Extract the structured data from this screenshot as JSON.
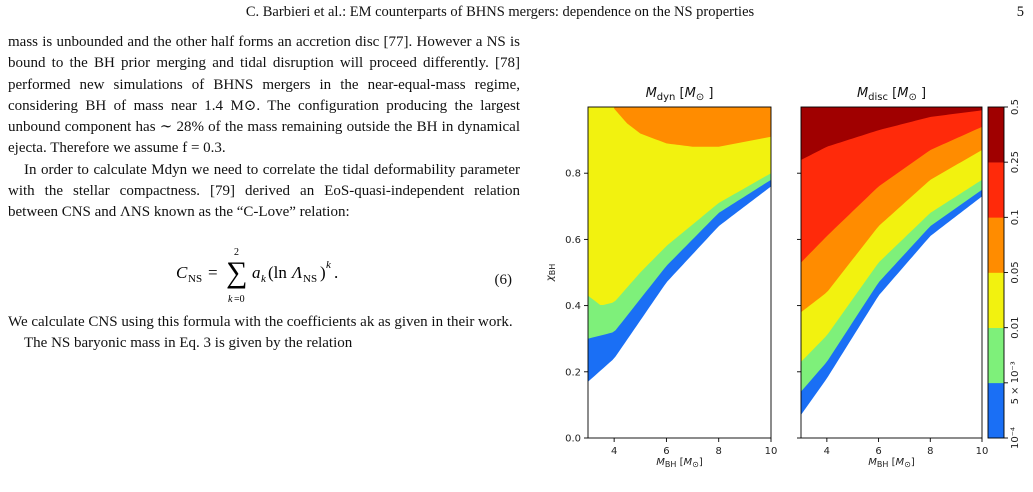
{
  "header": {
    "title": "C. Barbieri et al.: EM counterparts of BHNS mergers: dependence on the NS properties",
    "page_number": "5"
  },
  "text": {
    "p1": "mass is unbounded and the other half forms an accretion disc [77]. However a NS is bound to the BH prior merging and tidal disruption will proceed differently. [78] performed new simulations of BHNS mergers in the near-equal-mass regime, considering BH of mass near 1.4 M⊙. The configuration producing the largest unbound component has ∼ 28% of the mass remaining outside the BH in dynamical ejecta. Therefore we assume f = 0.3.",
    "p2": "In order to calculate Mdyn we need to correlate the tidal deformability parameter with the stellar compactness. [79] derived an EoS-quasi-independent relation between CNS and ΛNS known as the “C-Love” relation:",
    "equation_number": "(6)",
    "p3": "We calculate CNS using this formula with the coefficients ak as given in their work.",
    "p4": "The NS baryonic mass in Eq. 3 is given by the relation"
  },
  "chart_data": [
    {
      "type": "contour",
      "title": "M_dyn [M_⊙]",
      "xlabel": "M_BH [M_⊙]",
      "ylabel": "χ_BH",
      "xlim": [
        3,
        10
      ],
      "ylim": [
        0,
        1
      ],
      "xticks": [
        4,
        6,
        8,
        10
      ],
      "yticks": [
        0.0,
        0.2,
        0.4,
        0.6,
        0.8
      ],
      "region_boundaries": [
        {
          "level": "1e-4 → 5e-3",
          "x": [
            3,
            4,
            6,
            8,
            10
          ],
          "y": [
            0.17,
            0.24,
            0.47,
            0.64,
            0.76
          ]
        },
        {
          "level": "5e-3 → 0.01",
          "x": [
            3,
            4,
            6,
            8,
            10
          ],
          "y": [
            0.3,
            0.32,
            0.52,
            0.68,
            0.78
          ]
        },
        {
          "level": "0.01 → 0.05",
          "x": [
            3,
            3.5,
            4,
            5,
            6,
            8,
            10
          ],
          "y": [
            0.43,
            0.4,
            0.41,
            0.5,
            0.58,
            0.71,
            0.8
          ]
        },
        {
          "level": "0.05 → 0.1",
          "x": [
            4,
            4.5,
            5,
            6,
            7,
            8,
            10
          ],
          "y": [
            0.995,
            0.95,
            0.92,
            0.89,
            0.88,
            0.88,
            0.91
          ]
        }
      ]
    },
    {
      "type": "contour",
      "title": "M_disc [M_⊙]",
      "xlabel": "M_BH [M_⊙]",
      "ylabel": "",
      "xlim": [
        3,
        10
      ],
      "ylim": [
        0,
        1
      ],
      "xticks": [
        4,
        6,
        8,
        10
      ],
      "region_boundaries": [
        {
          "level": "1e-4 → 5e-3",
          "x": [
            3,
            4,
            6,
            8,
            10
          ],
          "y": [
            0.07,
            0.18,
            0.43,
            0.61,
            0.73
          ]
        },
        {
          "level": "5e-3 → 0.01",
          "x": [
            3,
            4,
            6,
            8,
            10
          ],
          "y": [
            0.14,
            0.23,
            0.47,
            0.64,
            0.75
          ]
        },
        {
          "level": "0.01 → 0.05",
          "x": [
            3,
            4,
            6,
            8,
            10
          ],
          "y": [
            0.23,
            0.31,
            0.53,
            0.68,
            0.78
          ]
        },
        {
          "level": "0.05 → 0.1",
          "x": [
            3,
            4,
            6,
            8,
            10
          ],
          "y": [
            0.38,
            0.44,
            0.64,
            0.78,
            0.87
          ]
        },
        {
          "level": "0.1 → 0.25",
          "x": [
            3,
            4,
            6,
            8,
            10
          ],
          "y": [
            0.53,
            0.61,
            0.76,
            0.87,
            0.94
          ]
        },
        {
          "level": "0.25 → 0.5",
          "x": [
            3,
            4,
            6,
            8,
            10
          ],
          "y": [
            0.84,
            0.88,
            0.93,
            0.97,
            0.99
          ]
        }
      ]
    }
  ],
  "colorbar": {
    "levels": [
      "10⁻⁴",
      "5 × 10⁻³",
      "0.01",
      "0.05",
      "0.1",
      "0.25",
      "0.5"
    ],
    "colors": [
      "#1a6ff5",
      "#7ef07a",
      "#f2f20f",
      "#ff8c00",
      "#ff2a0a",
      "#a00000"
    ]
  }
}
